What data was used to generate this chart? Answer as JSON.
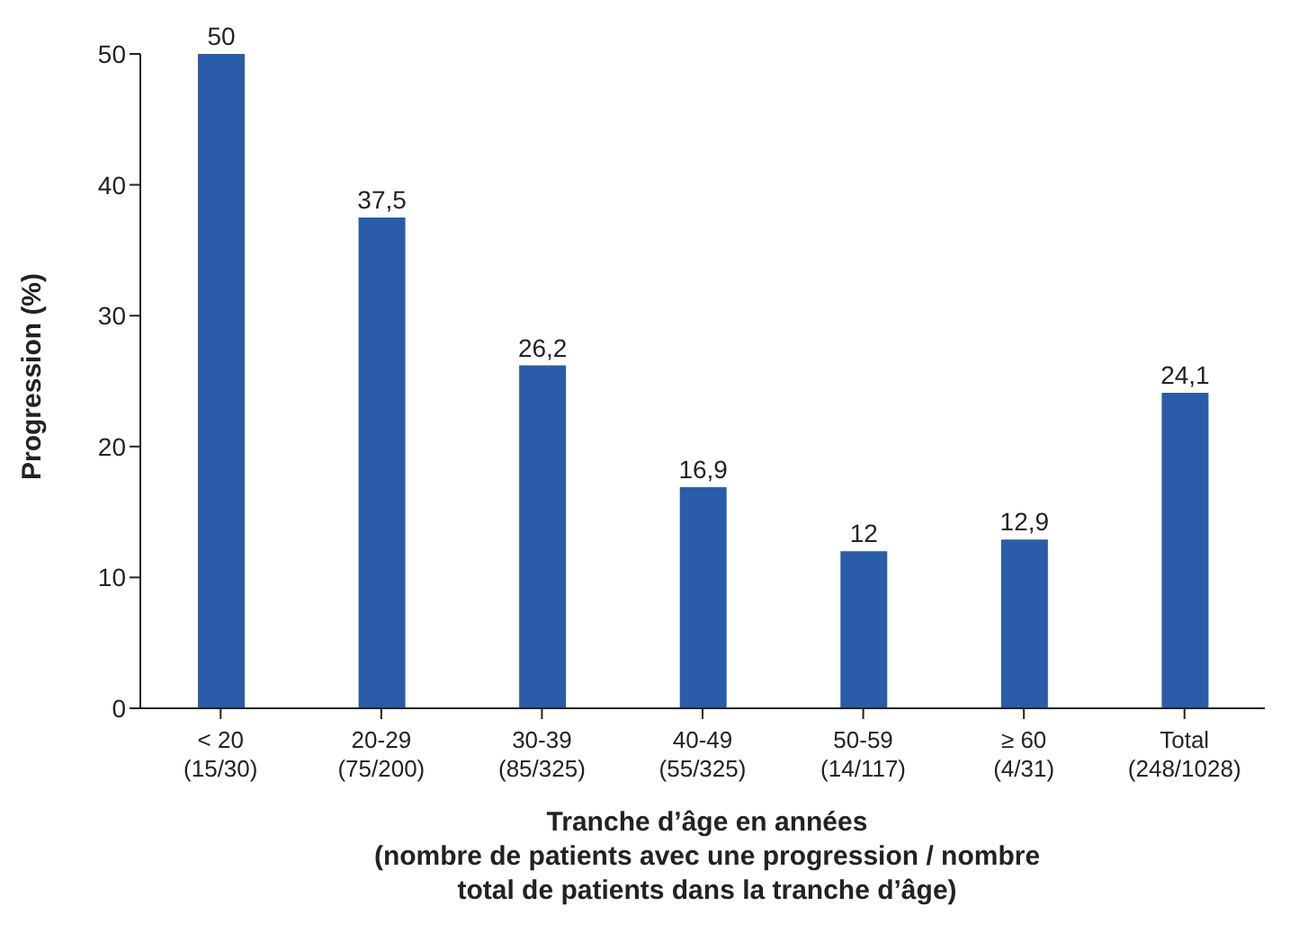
{
  "chart_data": {
    "type": "bar",
    "categories": [
      "< 20\n(15/30)",
      "20-29\n(75/200)",
      "30-39\n(85/325)",
      "40-49\n(55/325)",
      "50-59\n(14/117)",
      "≥ 60\n(4/31)",
      "Total\n(248/1028)"
    ],
    "values": [
      50,
      37.5,
      26.2,
      16.9,
      12,
      12.9,
      24.1
    ],
    "value_labels": [
      "50",
      "37,5",
      "26,2",
      "16,9",
      "12",
      "12,9",
      "24,1"
    ],
    "color": "#2a5caa",
    "ylabel": "Progression (%)",
    "xlabel": "Tranche d’âge en années\n(nombre de patients avec une progression / nombre\ntotal de patients dans la tranche d’âge)",
    "ylim": [
      0,
      50
    ],
    "yticks": [
      0,
      10,
      20,
      30,
      40,
      50
    ],
    "grid": false,
    "legend": false
  }
}
